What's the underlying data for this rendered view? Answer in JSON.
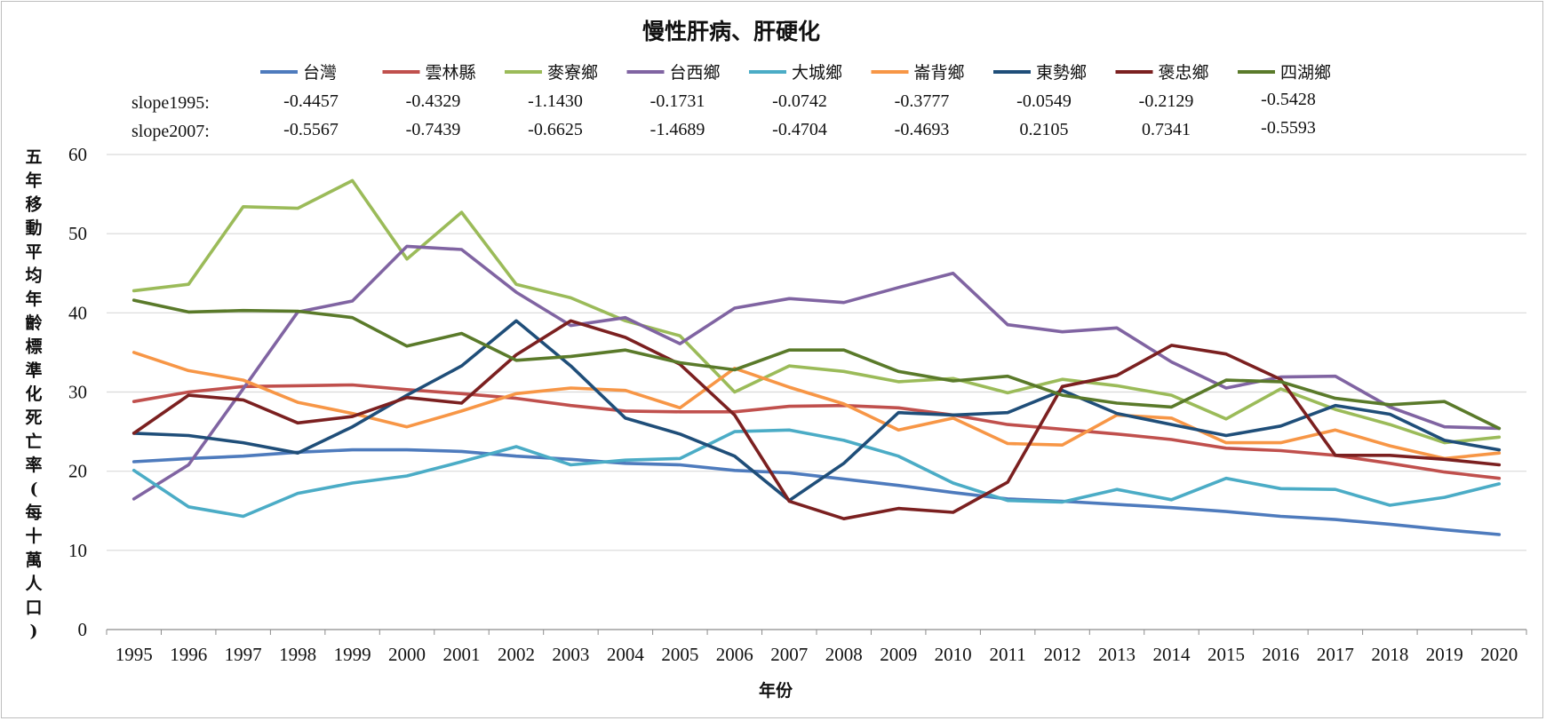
{
  "chart_data": {
    "type": "line",
    "title": "慢性肝病、肝硬化",
    "xlabel": "年份",
    "ylabel": "五年移動平均年齡標準化死亡率(每十萬人口)",
    "ylim": [
      0,
      60
    ],
    "yticks": [
      0,
      10,
      20,
      30,
      40,
      50,
      60
    ],
    "grid": "horizontal",
    "legend": "top",
    "x": [
      1995,
      1996,
      1997,
      1998,
      1999,
      2000,
      2001,
      2002,
      2003,
      2004,
      2005,
      2006,
      2007,
      2008,
      2009,
      2010,
      2011,
      2012,
      2013,
      2014,
      2015,
      2016,
      2017,
      2018,
      2019,
      2020
    ],
    "slope_rows": [
      {
        "label": "slope1995:",
        "values": [
          "-0.4457",
          "-0.4329",
          "-1.1430",
          "-0.1731",
          "-0.0742",
          "-0.3777",
          "-0.0549",
          "-0.2129",
          "-0.5428"
        ]
      },
      {
        "label": "slope2007:",
        "values": [
          "-0.5567",
          "-0.7439",
          "-0.6625",
          "-1.4689",
          "-0.4704",
          "-0.4693",
          "0.2105",
          "0.7341",
          "-0.5593"
        ]
      }
    ],
    "series": [
      {
        "name": "台灣",
        "color": "#4e7bbd",
        "values": [
          21.2,
          21.6,
          21.9,
          22.4,
          22.7,
          22.7,
          22.5,
          21.9,
          21.5,
          21.0,
          20.8,
          20.1,
          19.8,
          19.0,
          18.2,
          17.3,
          16.5,
          16.2,
          15.8,
          15.4,
          14.9,
          14.3,
          13.9,
          13.3,
          12.6,
          12.0
        ]
      },
      {
        "name": "雲林縣",
        "color": "#c0504d",
        "values": [
          28.8,
          30.0,
          30.7,
          30.8,
          30.9,
          30.3,
          29.8,
          29.2,
          28.3,
          27.6,
          27.5,
          27.5,
          28.2,
          28.3,
          28.0,
          27.1,
          25.9,
          25.3,
          24.7,
          24.0,
          22.9,
          22.6,
          22.0,
          21.0,
          19.9,
          19.1
        ]
      },
      {
        "name": "麥寮鄉",
        "color": "#9bbb59",
        "values": [
          42.8,
          43.6,
          53.4,
          53.2,
          56.7,
          46.8,
          52.7,
          43.6,
          41.9,
          39.0,
          37.1,
          30.0,
          33.3,
          32.6,
          31.3,
          31.7,
          29.9,
          31.6,
          30.8,
          29.6,
          26.6,
          30.4,
          27.8,
          25.9,
          23.6,
          24.3
        ]
      },
      {
        "name": "台西鄉",
        "color": "#8064a2",
        "values": [
          16.5,
          20.8,
          30.4,
          40.1,
          41.5,
          48.4,
          48.0,
          42.6,
          38.4,
          39.4,
          36.1,
          40.6,
          41.8,
          41.3,
          43.2,
          45.0,
          38.5,
          37.6,
          38.1,
          33.8,
          30.5,
          31.9,
          32.0,
          28.1,
          25.6,
          25.4
        ]
      },
      {
        "name": "大城鄉",
        "color": "#4bacc6",
        "values": [
          20.1,
          15.5,
          14.3,
          17.2,
          18.5,
          19.4,
          21.2,
          23.1,
          20.8,
          21.4,
          21.6,
          25.0,
          25.2,
          23.9,
          21.9,
          18.5,
          16.3,
          16.1,
          17.7,
          16.4,
          19.1,
          17.8,
          17.7,
          15.7,
          16.7,
          18.4
        ]
      },
      {
        "name": "崙背鄉",
        "color": "#f79646",
        "values": [
          35.0,
          32.7,
          31.5,
          28.7,
          27.3,
          25.6,
          27.6,
          29.8,
          30.5,
          30.2,
          28.0,
          33.0,
          30.6,
          28.5,
          25.2,
          26.7,
          23.5,
          23.3,
          27.1,
          26.7,
          23.6,
          23.6,
          25.2,
          23.2,
          21.6,
          22.3
        ]
      },
      {
        "name": "東勢鄉",
        "color": "#1f4e79",
        "values": [
          24.8,
          24.5,
          23.6,
          22.3,
          25.6,
          29.6,
          33.3,
          39.0,
          33.3,
          26.7,
          24.7,
          21.9,
          16.3,
          21.0,
          27.4,
          27.1,
          27.4,
          30.2,
          27.3,
          25.9,
          24.5,
          25.7,
          28.3,
          27.2,
          23.9,
          22.7
        ]
      },
      {
        "name": "褒忠鄉",
        "color": "#7b2020",
        "values": [
          24.8,
          29.6,
          29.0,
          26.1,
          26.9,
          29.3,
          28.6,
          34.7,
          39.0,
          36.9,
          33.5,
          27.1,
          16.2,
          14.0,
          15.3,
          14.8,
          18.6,
          30.7,
          32.1,
          35.9,
          34.8,
          31.6,
          22.0,
          22.0,
          21.5,
          20.8
        ]
      },
      {
        "name": "四湖鄉",
        "color": "#5a7a2a",
        "values": [
          41.6,
          40.1,
          40.3,
          40.2,
          39.4,
          35.8,
          37.4,
          34.0,
          34.5,
          35.3,
          33.7,
          32.8,
          35.3,
          35.3,
          32.6,
          31.4,
          32.0,
          29.6,
          28.6,
          28.1,
          31.5,
          31.3,
          29.2,
          28.4,
          28.8,
          25.4
        ]
      }
    ]
  }
}
